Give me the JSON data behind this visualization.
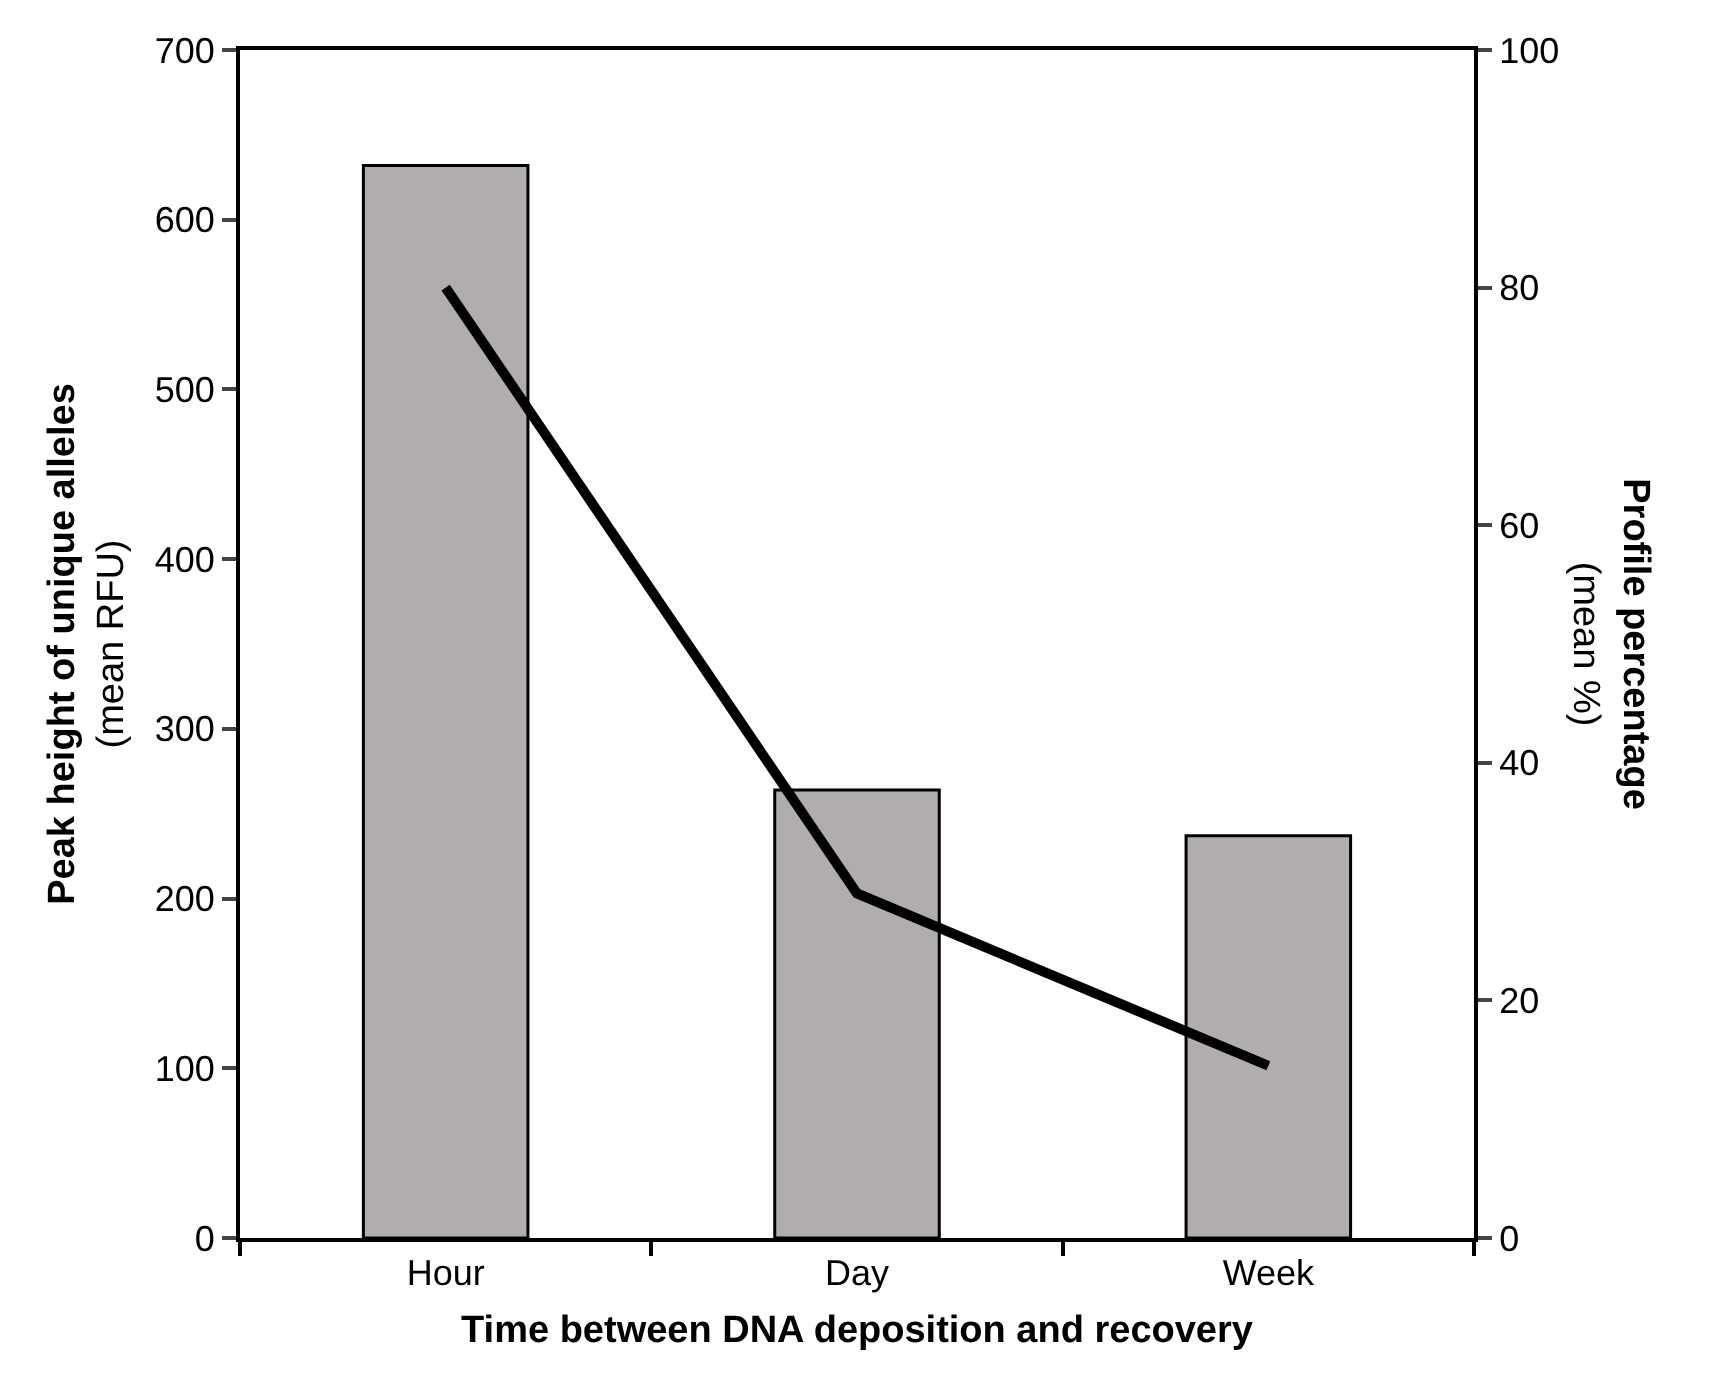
{
  "chart_data": {
    "type": "bar",
    "xlabel": "Time between DNA deposition and recovery",
    "ylabel": "Peak height of unique alleles\n(mean RFU)",
    "y2label": "Profile percentage\n(mean %)",
    "categories": [
      "Hour",
      "Day",
      "Week"
    ],
    "series": [
      {
        "color": "#b0adac",
        "values": [
          632,
          264,
          237
        ]
      },
      {
        "type": "line",
        "axis": "y2",
        "color": "#000000",
        "values": [
          80,
          29,
          14.5
        ]
      }
    ],
    "ylim": [
      0,
      700
    ],
    "yticks": [
      0,
      100,
      200,
      300,
      400,
      500,
      600,
      700
    ],
    "y2lim": [
      0,
      100
    ],
    "y2ticks": [
      0,
      20,
      40,
      60,
      80,
      100
    ],
    "marker": "none",
    "line_style": "solid"
  }
}
